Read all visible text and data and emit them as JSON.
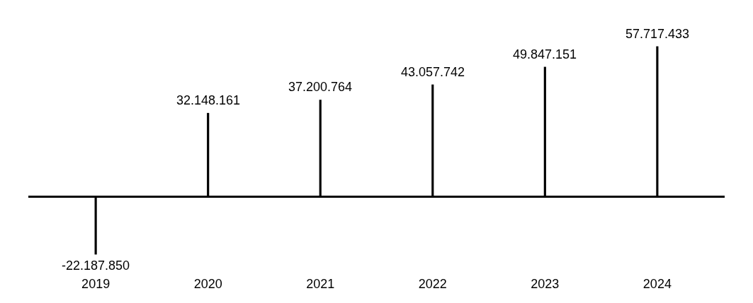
{
  "chart_data": {
    "type": "bar",
    "categories": [
      "2019",
      "2020",
      "2021",
      "2022",
      "2023",
      "2024"
    ],
    "values": [
      -22187850,
      32148161,
      37200764,
      43057742,
      49847151,
      57717433
    ],
    "value_labels": [
      "-22.187.850",
      "32.148.161",
      "37.200.764",
      "43.057.742",
      "49.847.151",
      "57.717.433"
    ],
    "color": "#000000",
    "grid": false,
    "legend": false
  }
}
